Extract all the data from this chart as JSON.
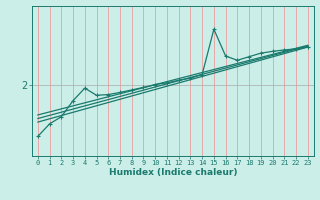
{
  "xlabel": "Humidex (Indice chaleur)",
  "ylabel": "",
  "bg_color": "#cceee8",
  "line_color": "#1a7a6e",
  "grid_color": "#e8a0a0",
  "xlim": [
    -0.5,
    23.5
  ],
  "ylim": [
    0.0,
    4.2
  ],
  "yticks": [
    2
  ],
  "xticks": [
    0,
    1,
    2,
    3,
    4,
    5,
    6,
    7,
    8,
    9,
    10,
    11,
    12,
    13,
    14,
    15,
    16,
    17,
    18,
    19,
    20,
    21,
    22,
    23
  ],
  "data_line": [
    [
      0,
      0.55
    ],
    [
      1,
      0.9
    ],
    [
      2,
      1.1
    ],
    [
      3,
      1.55
    ],
    [
      4,
      1.9
    ],
    [
      5,
      1.7
    ],
    [
      6,
      1.72
    ],
    [
      7,
      1.78
    ],
    [
      8,
      1.85
    ],
    [
      9,
      1.92
    ],
    [
      10,
      2.0
    ],
    [
      11,
      2.05
    ],
    [
      12,
      2.12
    ],
    [
      13,
      2.18
    ],
    [
      14,
      2.28
    ],
    [
      15,
      3.55
    ],
    [
      16,
      2.8
    ],
    [
      17,
      2.68
    ],
    [
      18,
      2.78
    ],
    [
      19,
      2.88
    ],
    [
      20,
      2.93
    ],
    [
      21,
      2.97
    ],
    [
      22,
      3.0
    ],
    [
      23,
      3.05
    ]
  ],
  "reg_line1": [
    [
      0,
      0.95
    ],
    [
      23,
      3.05
    ]
  ],
  "reg_line2": [
    [
      0,
      1.05
    ],
    [
      23,
      3.08
    ]
  ],
  "reg_line3": [
    [
      0,
      1.15
    ],
    [
      23,
      3.1
    ]
  ]
}
